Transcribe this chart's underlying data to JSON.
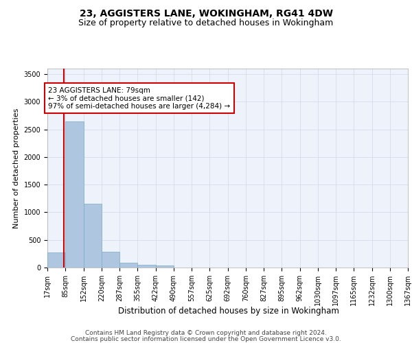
{
  "title": "23, AGGISTERS LANE, WOKINGHAM, RG41 4DW",
  "subtitle": "Size of property relative to detached houses in Wokingham",
  "xlabel": "Distribution of detached houses by size in Wokingham",
  "ylabel": "Number of detached properties",
  "bar_color": "#aec6df",
  "bar_edge_color": "#7aaac8",
  "highlight_line_color": "#cc0000",
  "background_color": "#eef2fa",
  "grid_color": "#d0d8e8",
  "annotation_text": "23 AGGISTERS LANE: 79sqm\n← 3% of detached houses are smaller (142)\n97% of semi-detached houses are larger (4,284) →",
  "annotation_box_color": "#ffffff",
  "annotation_border_color": "#cc0000",
  "property_size_sqm": 79,
  "bin_edges": [
    17,
    85,
    152,
    220,
    287,
    355,
    422,
    490,
    557,
    625,
    692,
    760,
    827,
    895,
    962,
    1030,
    1097,
    1165,
    1232,
    1300,
    1367
  ],
  "bin_labels": [
    "17sqm",
    "85sqm",
    "152sqm",
    "220sqm",
    "287sqm",
    "355sqm",
    "422sqm",
    "490sqm",
    "557sqm",
    "625sqm",
    "692sqm",
    "760sqm",
    "827sqm",
    "895sqm",
    "962sqm",
    "1030sqm",
    "1097sqm",
    "1165sqm",
    "1232sqm",
    "1300sqm",
    "1367sqm"
  ],
  "bar_heights": [
    270,
    2650,
    1150,
    290,
    90,
    55,
    35,
    0,
    0,
    0,
    0,
    0,
    0,
    0,
    0,
    0,
    0,
    0,
    0,
    0
  ],
  "ylim": [
    0,
    3600
  ],
  "yticks": [
    0,
    500,
    1000,
    1500,
    2000,
    2500,
    3000,
    3500
  ],
  "footer_line1": "Contains HM Land Registry data © Crown copyright and database right 2024.",
  "footer_line2": "Contains public sector information licensed under the Open Government Licence v3.0.",
  "title_fontsize": 10,
  "subtitle_fontsize": 9,
  "xlabel_fontsize": 8.5,
  "ylabel_fontsize": 8,
  "tick_fontsize": 7,
  "footer_fontsize": 6.5,
  "annotation_fontsize": 7.5
}
